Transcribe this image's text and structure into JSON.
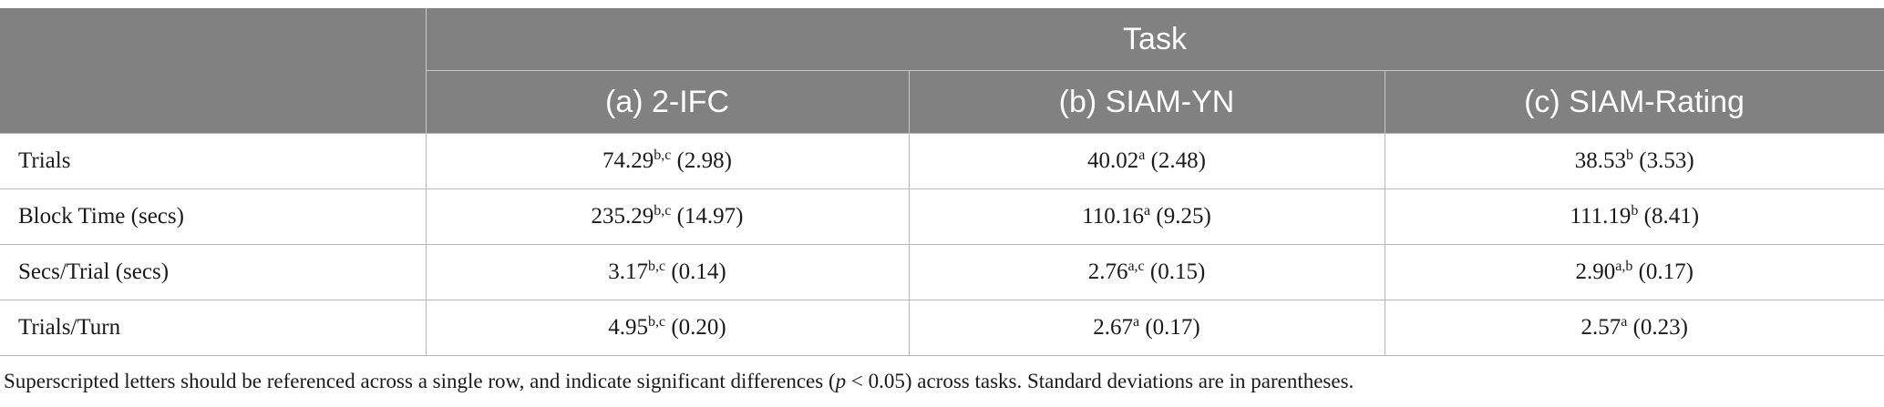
{
  "header": {
    "task_label": "Task",
    "columns": [
      "(a) 2-IFC",
      "(b) SIAM-YN",
      "(c) SIAM-Rating"
    ]
  },
  "rows": [
    {
      "label": "Trials",
      "cells": [
        {
          "value": "74.29",
          "sup": "b,c",
          "sd": "(2.98)"
        },
        {
          "value": "40.02",
          "sup": "a",
          "sd": "(2.48)"
        },
        {
          "value": "38.53",
          "sup": "b",
          "sd": "(3.53)"
        }
      ]
    },
    {
      "label": "Block Time (secs)",
      "cells": [
        {
          "value": "235.29",
          "sup": "b,c",
          "sd": "(14.97)"
        },
        {
          "value": "110.16",
          "sup": "a",
          "sd": "(9.25)"
        },
        {
          "value": "111.19",
          "sup": "b",
          "sd": "(8.41)"
        }
      ]
    },
    {
      "label": "Secs/Trial (secs)",
      "cells": [
        {
          "value": "3.17",
          "sup": "b,c",
          "sd": "(0.14)"
        },
        {
          "value": "2.76",
          "sup": "a,c",
          "sd": "(0.15)"
        },
        {
          "value": "2.90",
          "sup": "a,b",
          "sd": "(0.17)"
        }
      ]
    },
    {
      "label": "Trials/Turn",
      "cells": [
        {
          "value": "4.95",
          "sup": "b,c",
          "sd": "(0.20)"
        },
        {
          "value": "2.67",
          "sup": "a",
          "sd": "(0.17)"
        },
        {
          "value": "2.57",
          "sup": "a",
          "sd": "(0.23)"
        }
      ]
    }
  ],
  "footnote": {
    "before": "Superscripted letters should be referenced across a single row, and indicate significant differences (",
    "p_symbol": "p",
    "after": " < 0.05) across tasks. Standard deviations are in parentheses."
  }
}
